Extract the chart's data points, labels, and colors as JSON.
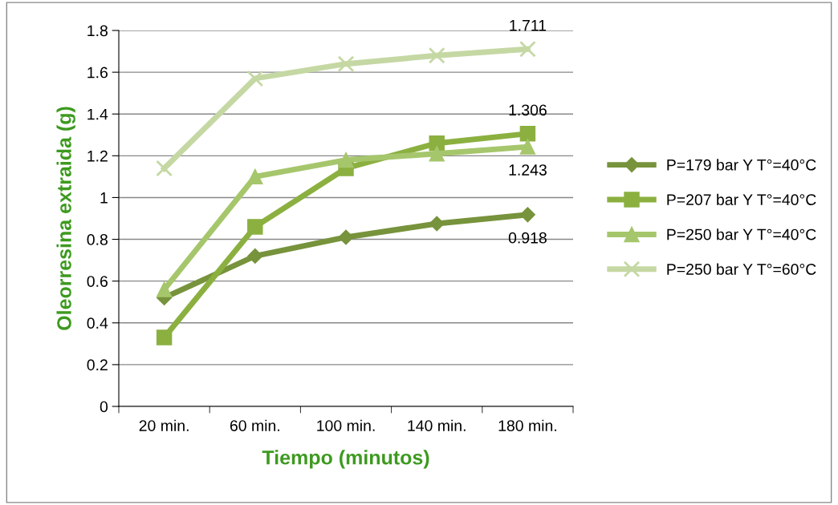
{
  "chart_data": {
    "type": "line",
    "xlabel": "Tiempo (minutos)",
    "ylabel": "Oleorresina extraida (g)",
    "categories": [
      "20 min.",
      "60 min.",
      "100 min.",
      "140 min.",
      "180 min."
    ],
    "series": [
      {
        "name": "P=179 bar Y T°=40°C",
        "color": "#77933c",
        "marker": "diamond",
        "values": [
          0.52,
          0.72,
          0.81,
          0.875,
          0.918
        ],
        "value_labels": [
          null,
          null,
          null,
          null,
          "0.918"
        ]
      },
      {
        "name": "P=207 bar Y T°=40°C",
        "color": "#8bb040",
        "marker": "square",
        "values": [
          0.33,
          0.86,
          1.14,
          1.26,
          1.306
        ],
        "value_labels": [
          null,
          null,
          null,
          null,
          "1.306"
        ]
      },
      {
        "name": "P=250 bar Y T°=40°C",
        "color": "#a6c66c",
        "marker": "triangle",
        "values": [
          0.56,
          1.1,
          1.18,
          1.21,
          1.243
        ],
        "value_labels": [
          null,
          null,
          null,
          null,
          "1.243"
        ]
      },
      {
        "name": "P=250 bar Y T°=60°C",
        "color": "#c5d8a4",
        "marker": "cross",
        "values": [
          1.14,
          1.57,
          1.64,
          1.68,
          1.711
        ],
        "value_labels": [
          null,
          null,
          null,
          null,
          "1.711"
        ]
      }
    ],
    "ylim": [
      0,
      1.8
    ],
    "yticks": [
      0,
      0.2,
      0.4,
      0.6,
      0.8,
      1,
      1.2,
      1.4,
      1.6,
      1.8
    ],
    "grid": "y",
    "legend": "right"
  }
}
